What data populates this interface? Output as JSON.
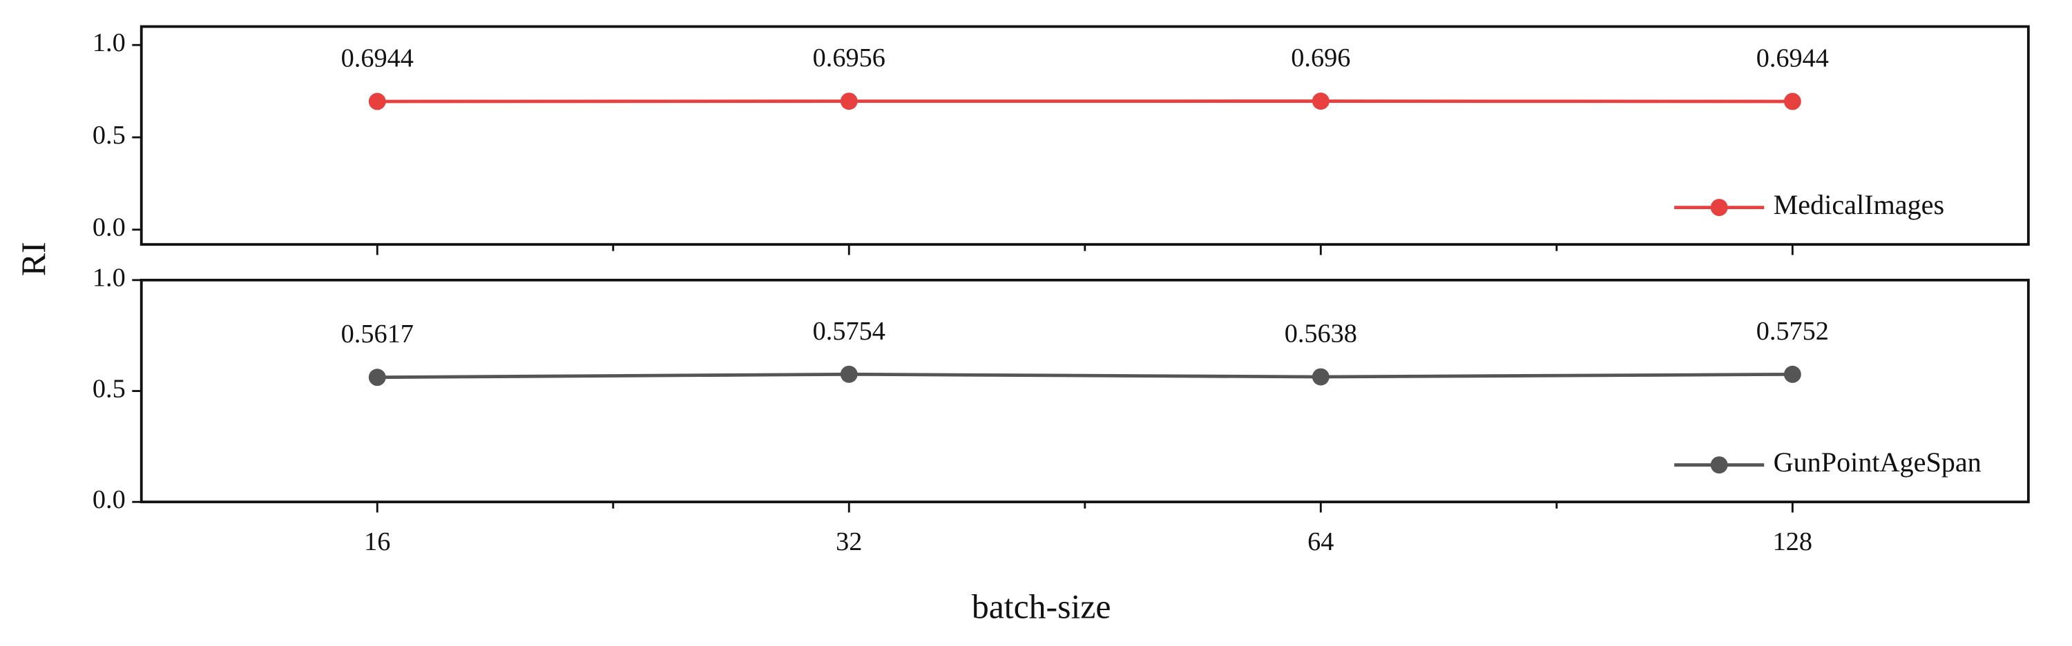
{
  "ylabel": "RI",
  "xlabel": "batch-size",
  "chart_data": [
    {
      "type": "line",
      "categories": [
        "16",
        "32",
        "64",
        "128"
      ],
      "series": [
        {
          "name": "MedicalImages",
          "color": "#e8403f",
          "values": [
            0.6944,
            0.6956,
            0.696,
            0.6944
          ]
        }
      ],
      "ylim": [
        -0.08,
        1.1
      ],
      "yticks": [
        {
          "value": 0,
          "label": "0.0"
        },
        {
          "value": 0.5,
          "label": "0.5"
        },
        {
          "value": 1,
          "label": "1.0"
        }
      ],
      "legend": "lower right"
    },
    {
      "type": "line",
      "categories": [
        "16",
        "32",
        "64",
        "128"
      ],
      "series": [
        {
          "name": "GunPointAgeSpan",
          "color": "#555555",
          "values": [
            0.5617,
            0.5754,
            0.5638,
            0.5752
          ]
        }
      ],
      "ylim": [
        0,
        1.0
      ],
      "yticks": [
        {
          "value": 0,
          "label": "0.0"
        },
        {
          "value": 0.5,
          "label": "0.5"
        },
        {
          "value": 1,
          "label": "1.0"
        }
      ],
      "legend": "lower right"
    }
  ]
}
